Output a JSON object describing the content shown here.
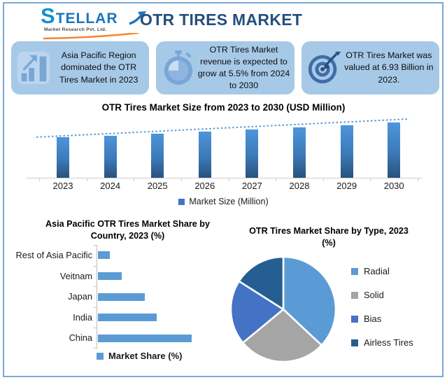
{
  "header": {
    "logo_brand": "STELLAR",
    "logo_tagline": "Market Research Pvt. Ltd.",
    "title": "OTR TIRES MARKET"
  },
  "highlights": [
    {
      "icon": "bar-growth-icon",
      "text": "Asia Pacific Region dominated the OTR Tires Market in 2023"
    },
    {
      "icon": "stopwatch-icon",
      "text": "OTR Tires Market revenue is expected to grow at 5.5% from 2024 to 2030"
    },
    {
      "icon": "dartboard-icon",
      "text": "OTR Tires Market was valued at 6.93 Billion in 2023."
    }
  ],
  "chart_data": [
    {
      "id": "market_size_trend",
      "type": "bar",
      "title": "OTR Tires Market Size from 2023 to 2030 (USD Million)",
      "categories": [
        "2023",
        "2024",
        "2025",
        "2026",
        "2027",
        "2028",
        "2029",
        "2030"
      ],
      "values": [
        6930,
        7311,
        7713,
        8137,
        8585,
        9057,
        9555,
        10081
      ],
      "legend": [
        "Market Size (Million)"
      ],
      "legend_marker_color": "#4472C4",
      "bar_color_top": "#4E95DA",
      "bar_color_bottom": "#28527E",
      "trendline": true,
      "trendline_color": "#5B9BD5",
      "value_axis_shown": false
    },
    {
      "id": "apac_country_share",
      "type": "bar",
      "orientation": "horizontal",
      "title": "Asia Pacific OTR Tires Market Share by Country, 2023 (%)",
      "categories": [
        "Rest of Asia Pacific",
        "Veitnam",
        "Japan",
        "India",
        "China"
      ],
      "values": [
        5,
        10,
        20,
        25,
        40
      ],
      "legend": [
        "Market Share (%)"
      ],
      "bar_color": "#5B9BD5",
      "value_axis_shown": false
    },
    {
      "id": "type_share_pie",
      "type": "pie",
      "title": "OTR Tires Market Share by Type, 2023 (%)",
      "labels": [
        "Radial",
        "Solid",
        "Bias",
        "Airless Tires"
      ],
      "values": [
        37,
        27,
        20,
        16
      ],
      "colors": [
        "#5B9BD5",
        "#A5A5A5",
        "#4472C4",
        "#255E91"
      ],
      "legend_position": "right"
    }
  ],
  "colors": {
    "frame_border": "#79A7D9",
    "highlight_box_bg": "#A6C9E8",
    "highlight_icon_blue": "#78A7D6",
    "dartboard_navy": "#3F6DA6",
    "header_title": "#24507D",
    "logo_blue": "#1B75BC",
    "logo_swoosh_orange": "#F58634",
    "axis_gray": "#D0CECE"
  }
}
